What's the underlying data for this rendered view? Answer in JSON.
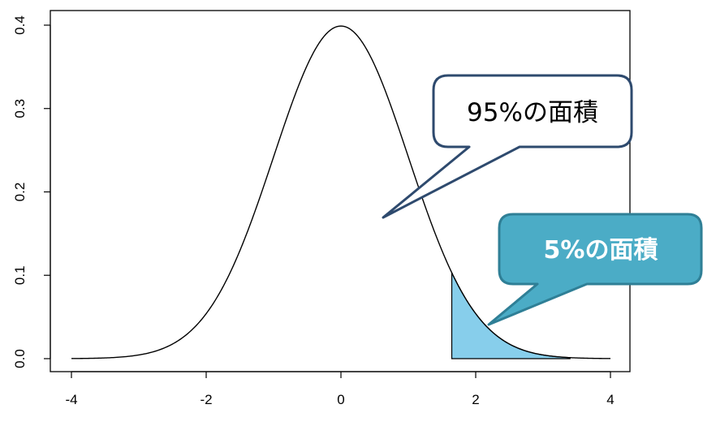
{
  "chart_data": {
    "type": "area",
    "distribution": "standard-normal-density",
    "x": [
      -4,
      -3.5,
      -3,
      -2.5,
      -2,
      -1.5,
      -1,
      -0.5,
      0,
      0.5,
      1,
      1.5,
      1.645,
      2,
      2.5,
      3,
      3.5,
      4
    ],
    "y": [
      0.0001,
      0.0009,
      0.0044,
      0.0175,
      0.054,
      0.1295,
      0.242,
      0.3521,
      0.3989,
      0.3521,
      0.242,
      0.1295,
      0.1031,
      0.054,
      0.0175,
      0.0044,
      0.0009,
      0.0001
    ],
    "xlim": [
      -4,
      4
    ],
    "ylim": [
      0,
      0.4
    ],
    "xticks": [
      "-4",
      "-2",
      "0",
      "2",
      "4"
    ],
    "yticks": [
      "0.0",
      "0.1",
      "0.2",
      "0.3",
      "0.4"
    ],
    "shaded_region": {
      "from": 1.645,
      "to": 3.4,
      "color": "#87ceeb"
    },
    "grid": false,
    "annotations": [
      {
        "id": "area95",
        "text": "95%の面積",
        "fill": "#ffffff",
        "stroke": "#2e4a6e",
        "text_color": "#000000"
      },
      {
        "id": "area5",
        "text": "5%の面積",
        "fill": "#4bacc6",
        "stroke": "#2f7f96",
        "text_color": "#ffffff"
      }
    ],
    "colors": {
      "curve": "#000000",
      "shade": "#87ceeb"
    }
  }
}
